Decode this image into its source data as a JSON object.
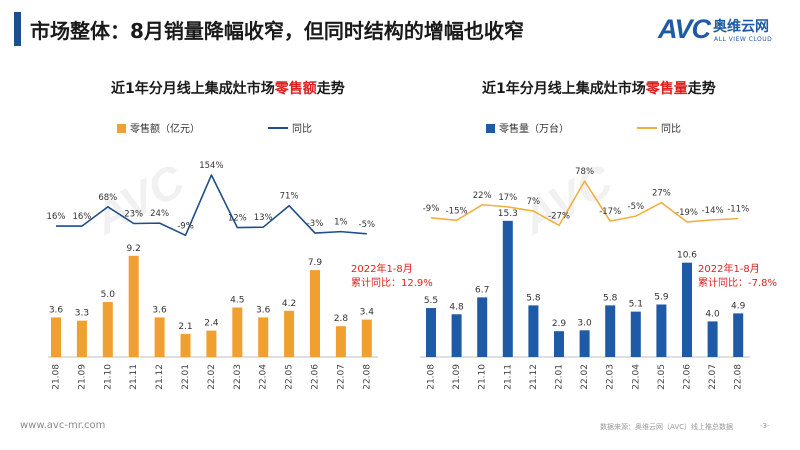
{
  "page_title": "市场整体：8月销量降幅收窄，但同时结构的增幅也收窄",
  "logo": {
    "letters": "AVC",
    "name_cn": "奥维云网",
    "name_en": "ALL VIEW CLOUD"
  },
  "watermark": {
    "letters": "AVC",
    "name_cn": "奥维云网",
    "name_en": "ALL VIEW CLOUD"
  },
  "colors": {
    "accent": "#1f4e8c",
    "bar_left": "#f0a030",
    "line_left": "#1f4e8c",
    "bar_right": "#1f5aa6",
    "line_right": "#f0b040",
    "highlight": "#e02020"
  },
  "footer": {
    "url": "www.avc-mr.com",
    "source": "数据来源：奥维云网（AVC）线上推总数据",
    "page": "-3-"
  },
  "chart_data": [
    {
      "type": "bar",
      "title_prefix": "近1年分月线上集成灶市场",
      "title_highlight": "零售额",
      "title_suffix": "走势",
      "categories": [
        "21.08",
        "21.09",
        "21.10",
        "21.11",
        "21.12",
        "22.01",
        "22.02",
        "22.03",
        "22.04",
        "22.05",
        "22.06",
        "22.07",
        "22.08"
      ],
      "series": [
        {
          "name": "零售额（亿元）",
          "kind": "bar",
          "values": [
            3.6,
            3.3,
            5.0,
            9.2,
            3.6,
            2.1,
            2.4,
            4.5,
            3.6,
            4.2,
            7.9,
            2.8,
            3.4
          ],
          "labels": [
            "3.6",
            "3.3",
            "5.0",
            "9.2",
            "3.6",
            "2.1",
            "2.4",
            "4.5",
            "3.6",
            "4.2",
            "7.9",
            "2.8",
            "3.4"
          ]
        },
        {
          "name": "同比",
          "kind": "line",
          "values": [
            16,
            16,
            68,
            23,
            24,
            -9,
            154,
            12,
            13,
            71,
            -3,
            1,
            -5
          ],
          "labels": [
            "16%",
            "16%",
            "68%",
            "23%",
            "24%",
            "-9%",
            "154%",
            "12%",
            "13%",
            "71%",
            "-3%",
            "1%",
            "-5%"
          ]
        }
      ],
      "annotation": [
        "2022年1-8月",
        "累计同比：12.9%"
      ]
    },
    {
      "type": "bar",
      "title_prefix": "近1年分月线上集成灶市场",
      "title_highlight": "零售量",
      "title_suffix": "走势",
      "categories": [
        "21.08",
        "21.09",
        "21.10",
        "21.11",
        "21.12",
        "22.01",
        "22.02",
        "22.03",
        "22.04",
        "22.05",
        "22.06",
        "22.07",
        "22.08"
      ],
      "series": [
        {
          "name": "零售量（万台）",
          "kind": "bar",
          "values": [
            5.5,
            4.8,
            6.7,
            15.3,
            5.8,
            2.9,
            3.0,
            5.8,
            5.1,
            5.9,
            10.6,
            4.0,
            4.9
          ],
          "labels": [
            "5.5",
            "4.8",
            "6.7",
            "15.3",
            "5.8",
            "2.9",
            "3.0",
            "5.8",
            "5.1",
            "5.9",
            "10.6",
            "4.0",
            "4.9"
          ]
        },
        {
          "name": "同比",
          "kind": "line",
          "values": [
            -9,
            -15,
            22,
            17,
            7,
            -27,
            78,
            -17,
            -5,
            27,
            -19,
            -14,
            -11
          ],
          "labels": [
            "-9%",
            "-15%",
            "22%",
            "17%",
            "7%",
            "-27%",
            "78%",
            "-17%",
            "-5%",
            "27%",
            "-19%",
            "-14%",
            "-11%"
          ]
        }
      ],
      "annotation": [
        "2022年1-8月",
        "累计同比：-7.8%"
      ]
    }
  ]
}
